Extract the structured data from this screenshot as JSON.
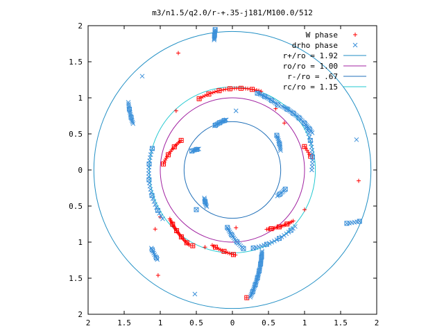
{
  "chart_data": {
    "type": "scatter",
    "title": "m3/n1.5/q2.0/r-+.35-j181/M100.0/512",
    "xlabel": "",
    "ylabel": "",
    "xlim": [
      -2,
      2
    ],
    "ylim": [
      -2,
      2
    ],
    "grid": false,
    "legend_position": "top-right",
    "x_ticks": [
      {
        "value": -2,
        "label": "2"
      },
      {
        "value": -1.5,
        "label": "1.5"
      },
      {
        "value": -1,
        "label": "1"
      },
      {
        "value": -0.5,
        "label": "0.5"
      },
      {
        "value": 0,
        "label": "0"
      },
      {
        "value": 0.5,
        "label": "0.5"
      },
      {
        "value": 1,
        "label": "1"
      },
      {
        "value": 1.5,
        "label": "1.5"
      },
      {
        "value": 2,
        "label": "2"
      }
    ],
    "y_ticks": [
      {
        "value": 2,
        "label": "2"
      },
      {
        "value": 1.5,
        "label": "1.5"
      },
      {
        "value": 1,
        "label": "1"
      },
      {
        "value": 0.5,
        "label": "0.5"
      },
      {
        "value": 0,
        "label": "0"
      },
      {
        "value": -0.5,
        "label": "0.5"
      },
      {
        "value": -1,
        "label": "1"
      },
      {
        "value": -1.5,
        "label": "1.5"
      },
      {
        "value": -2,
        "label": "2"
      }
    ],
    "legend": [
      {
        "label": "W phase",
        "color": "#ff0000",
        "marker": "plus"
      },
      {
        "label": "drho phase",
        "color": "#3a8fd9",
        "marker": "cross"
      },
      {
        "label": "r+/ro = 1.92",
        "color": "#1f8ec4",
        "marker": "line"
      },
      {
        "label": "ro/ro = 1.00",
        "color": "#a020a0",
        "marker": "line"
      },
      {
        "label": "r-/ro = .67",
        "color": "#1f6fb8",
        "marker": "line"
      },
      {
        "label": "rc/ro = 1.15",
        "color": "#22c8d0",
        "marker": "line"
      }
    ],
    "circles": [
      {
        "name": "r+/ro = 1.92",
        "radius": 1.92,
        "color": "#1f8ec4"
      },
      {
        "name": "ro/ro = 1.00",
        "radius": 1.0,
        "color": "#a020a0"
      },
      {
        "name": "r-/ro = .67",
        "radius": 0.67,
        "color": "#1f6fb8"
      },
      {
        "name": "rc/ro = 1.15",
        "radius": 1.15,
        "color": "#22c8d0"
      }
    ],
    "series": [
      {
        "name": "W phase",
        "color": "#ff0000",
        "arcs": [
          {
            "r0": 1.09,
            "r1": 1.16,
            "t0": 115,
            "t1": 70,
            "n": 30
          },
          {
            "r0": 0.82,
            "r1": 0.96,
            "t0": 150,
            "t1": 175,
            "n": 16
          },
          {
            "r0": 1.1,
            "r1": 1.2,
            "t0": 218,
            "t1": 240,
            "n": 22
          },
          {
            "r0": 1.08,
            "r1": 1.18,
            "t0": 255,
            "t1": 272,
            "n": 14
          },
          {
            "r0": 0.95,
            "r1": 1.1,
            "t0": 300,
            "t1": 320,
            "n": 18
          },
          {
            "r0": 1.05,
            "r1": 1.1,
            "t0": 18,
            "t1": 10,
            "n": 6
          }
        ],
        "points": [
          {
            "x": -1.03,
            "y": -1.46
          },
          {
            "x": -0.75,
            "y": 1.62
          },
          {
            "x": -1.0,
            "y": -0.65
          },
          {
            "x": -1.07,
            "y": -0.82
          },
          {
            "x": -0.55,
            "y": -1.05
          },
          {
            "x": -0.38,
            "y": -1.07
          },
          {
            "x": -0.78,
            "y": 0.82
          },
          {
            "x": 0.05,
            "y": -0.8
          },
          {
            "x": 1.75,
            "y": -0.15
          },
          {
            "x": 0.2,
            "y": -1.77
          },
          {
            "x": 1.0,
            "y": -0.55
          },
          {
            "x": 0.72,
            "y": 0.65
          },
          {
            "x": 0.6,
            "y": 0.85
          }
        ]
      },
      {
        "name": "drho phase",
        "color": "#3a8fd9",
        "arcs": [
          {
            "r0": 1.12,
            "r1": 1.1,
            "t0": 72,
            "t1": 55,
            "n": 16
          },
          {
            "r0": 1.12,
            "r1": 1.22,
            "t0": 52,
            "t1": 25,
            "n": 28
          },
          {
            "r0": 0.66,
            "r1": 0.7,
            "t0": 112,
            "t1": 97,
            "n": 14
          },
          {
            "r0": 0.55,
            "r1": 0.62,
            "t0": 148,
            "t1": 155,
            "n": 8
          },
          {
            "r0": 1.52,
            "r1": 1.72,
            "t0": 155,
            "t1": 147,
            "n": 14
          },
          {
            "r0": 1.15,
            "r1": 1.18,
            "t0": 165,
            "t1": 215,
            "n": 24
          },
          {
            "r0": 1.56,
            "r1": 1.62,
            "t0": 224,
            "t1": 230,
            "n": 8
          },
          {
            "r0": 0.55,
            "r1": 0.62,
            "t0": 225,
            "t1": 235,
            "n": 8
          },
          {
            "r0": 0.8,
            "r1": 1.1,
            "t0": 265,
            "t1": 278,
            "n": 16
          },
          {
            "r0": 1.2,
            "r1": 1.78,
            "t0": 290,
            "t1": 278,
            "n": 34
          },
          {
            "r0": 1.12,
            "r1": 1.17,
            "t0": 285,
            "t1": 318,
            "n": 18
          },
          {
            "r0": 0.72,
            "r1": 0.78,
            "t0": 330,
            "t1": 340,
            "n": 8
          },
          {
            "r0": 0.72,
            "r1": 0.78,
            "t0": 22,
            "t1": 38,
            "n": 10
          },
          {
            "r0": 1.1,
            "r1": 1.18,
            "t0": 0,
            "t1": 30,
            "n": 14
          },
          {
            "r0": 1.75,
            "r1": 1.9,
            "t0": 335,
            "t1": 338,
            "n": 6
          },
          {
            "r0": 1.82,
            "r1": 1.96,
            "t0": 98,
            "t1": 97,
            "n": 10
          }
        ],
        "points": [
          {
            "x": -1.25,
            "y": 1.3
          },
          {
            "x": 1.72,
            "y": 0.42
          },
          {
            "x": -0.52,
            "y": -1.72
          },
          {
            "x": 0.05,
            "y": 0.82
          },
          {
            "x": -0.5,
            "y": -0.55
          },
          {
            "x": 1.0,
            "y": 0.65
          }
        ]
      }
    ]
  }
}
